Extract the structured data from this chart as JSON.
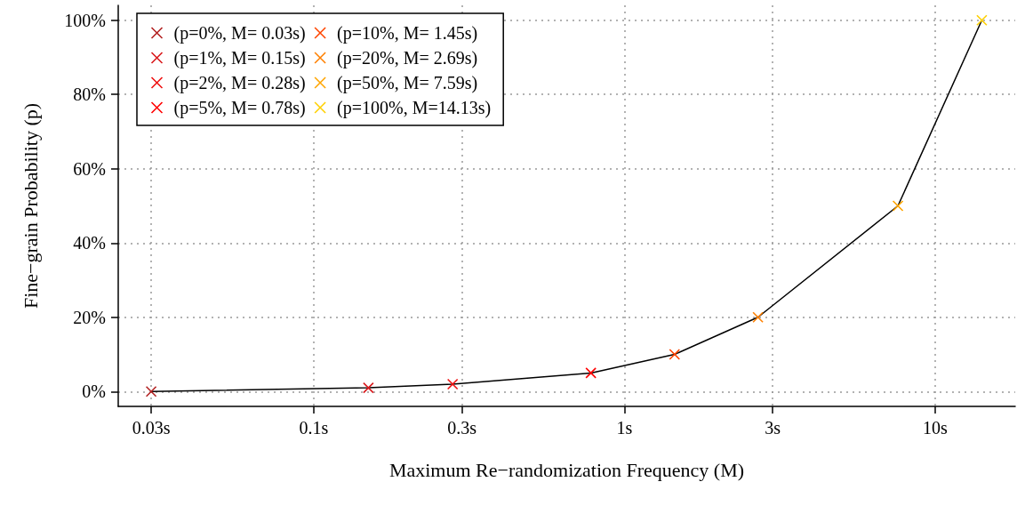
{
  "chart_data": {
    "type": "scatter",
    "xlabel": "Maximum Re−randomization Frequency (M)",
    "ylabel": "Fine−grain Probability (p)",
    "log": "x",
    "xlim": [
      0.0235,
      18.1
    ],
    "xticks": [
      {
        "value": 0.03,
        "label": "0.03s"
      },
      {
        "value": 0.1,
        "label": "0.1s"
      },
      {
        "value": 0.3,
        "label": "0.3s"
      },
      {
        "value": 1,
        "label": "1s"
      },
      {
        "value": 3,
        "label": "3s"
      },
      {
        "value": 10,
        "label": "10s"
      }
    ],
    "ylim": [
      -4,
      104
    ],
    "yticks": [
      {
        "value": 0,
        "label": "0%"
      },
      {
        "value": 20,
        "label": "20%"
      },
      {
        "value": 40,
        "label": "40%"
      },
      {
        "value": 60,
        "label": "60%"
      },
      {
        "value": 80,
        "label": "80%"
      },
      {
        "value": 100,
        "label": "100%"
      }
    ],
    "grid": true,
    "legend": "top left",
    "marker": "cross",
    "series": [
      {
        "type": "line",
        "color": "#000000",
        "line_style": "solid",
        "marker": "none",
        "x": [
          0.03,
          0.15,
          0.28,
          0.78,
          1.45,
          2.69,
          7.59,
          14.13
        ],
        "values": [
          0,
          1,
          2,
          5,
          10,
          20,
          50,
          100
        ]
      },
      {
        "name": "(p=0%, M= 0.03s)",
        "color": "#b22222",
        "x": [
          0.03
        ],
        "values": [
          0
        ]
      },
      {
        "name": "(p=1%, M= 0.15s)",
        "color": "#d9191c",
        "x": [
          0.15
        ],
        "values": [
          1
        ]
      },
      {
        "name": "(p=2%, M= 0.28s)",
        "color": "#ee1111",
        "x": [
          0.28
        ],
        "values": [
          2
        ]
      },
      {
        "name": "(p=5%, M= 0.78s)",
        "color": "#ff0000",
        "x": [
          0.78
        ],
        "values": [
          5
        ]
      },
      {
        "name": "(p=10%, M= 1.45s)",
        "color": "#ff4500",
        "x": [
          1.45
        ],
        "values": [
          10
        ]
      },
      {
        "name": "(p=20%, M= 2.69s)",
        "color": "#ff8000",
        "x": [
          2.69
        ],
        "values": [
          20
        ]
      },
      {
        "name": "(p=50%, M= 7.59s)",
        "color": "#ffa500",
        "x": [
          7.59
        ],
        "values": [
          50
        ]
      },
      {
        "name": "(p=100%, M=14.13s)",
        "color": "#ffd000",
        "x": [
          14.13
        ],
        "values": [
          100
        ]
      }
    ]
  }
}
